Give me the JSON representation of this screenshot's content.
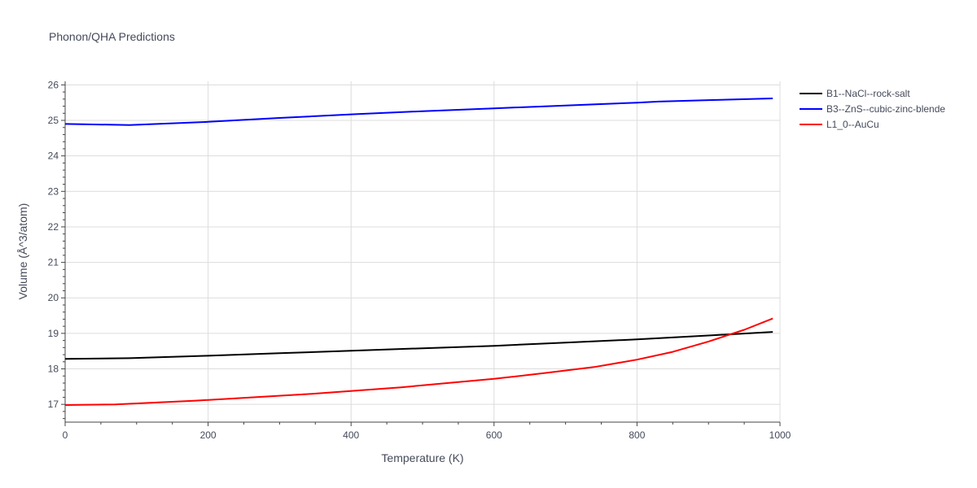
{
  "chart_data": {
    "type": "line",
    "title": "Phonon/QHA Predictions",
    "xlabel": "Temperature (K)",
    "ylabel": "Volume (Å^3/atom)",
    "xlim": [
      0,
      1000
    ],
    "ylim": [
      16.5,
      26.1
    ],
    "xticks": [
      0,
      200,
      400,
      600,
      800,
      1000
    ],
    "yticks": [
      17,
      18,
      19,
      20,
      21,
      22,
      23,
      24,
      25,
      26
    ],
    "grid": true,
    "legend_position": "top-right, outside plot",
    "series": [
      {
        "name": "B1--NaCl--rock-salt",
        "color": "#000000",
        "x": [
          0,
          90,
          200,
          300,
          400,
          500,
          600,
          700,
          800,
          900,
          990
        ],
        "y": [
          18.28,
          18.3,
          18.37,
          18.44,
          18.51,
          18.58,
          18.65,
          18.74,
          18.83,
          18.94,
          19.04
        ]
      },
      {
        "name": "B3--ZnS--cubic-zinc-blende",
        "color": "#0000ff",
        "x": [
          0,
          90,
          200,
          300,
          400,
          500,
          600,
          700,
          800,
          830,
          900,
          990
        ],
        "y": [
          24.9,
          24.87,
          24.96,
          25.07,
          25.17,
          25.26,
          25.34,
          25.42,
          25.5,
          25.53,
          25.57,
          25.62
        ]
      },
      {
        "name": "L1_0--AuCu",
        "color": "#ff0000",
        "x": [
          0,
          70,
          180,
          340,
          470,
          600,
          670,
          740,
          800,
          850,
          900,
          950,
          990
        ],
        "y": [
          16.98,
          17.0,
          17.1,
          17.29,
          17.48,
          17.72,
          17.88,
          18.05,
          18.26,
          18.48,
          18.77,
          19.1,
          19.42
        ]
      }
    ]
  }
}
